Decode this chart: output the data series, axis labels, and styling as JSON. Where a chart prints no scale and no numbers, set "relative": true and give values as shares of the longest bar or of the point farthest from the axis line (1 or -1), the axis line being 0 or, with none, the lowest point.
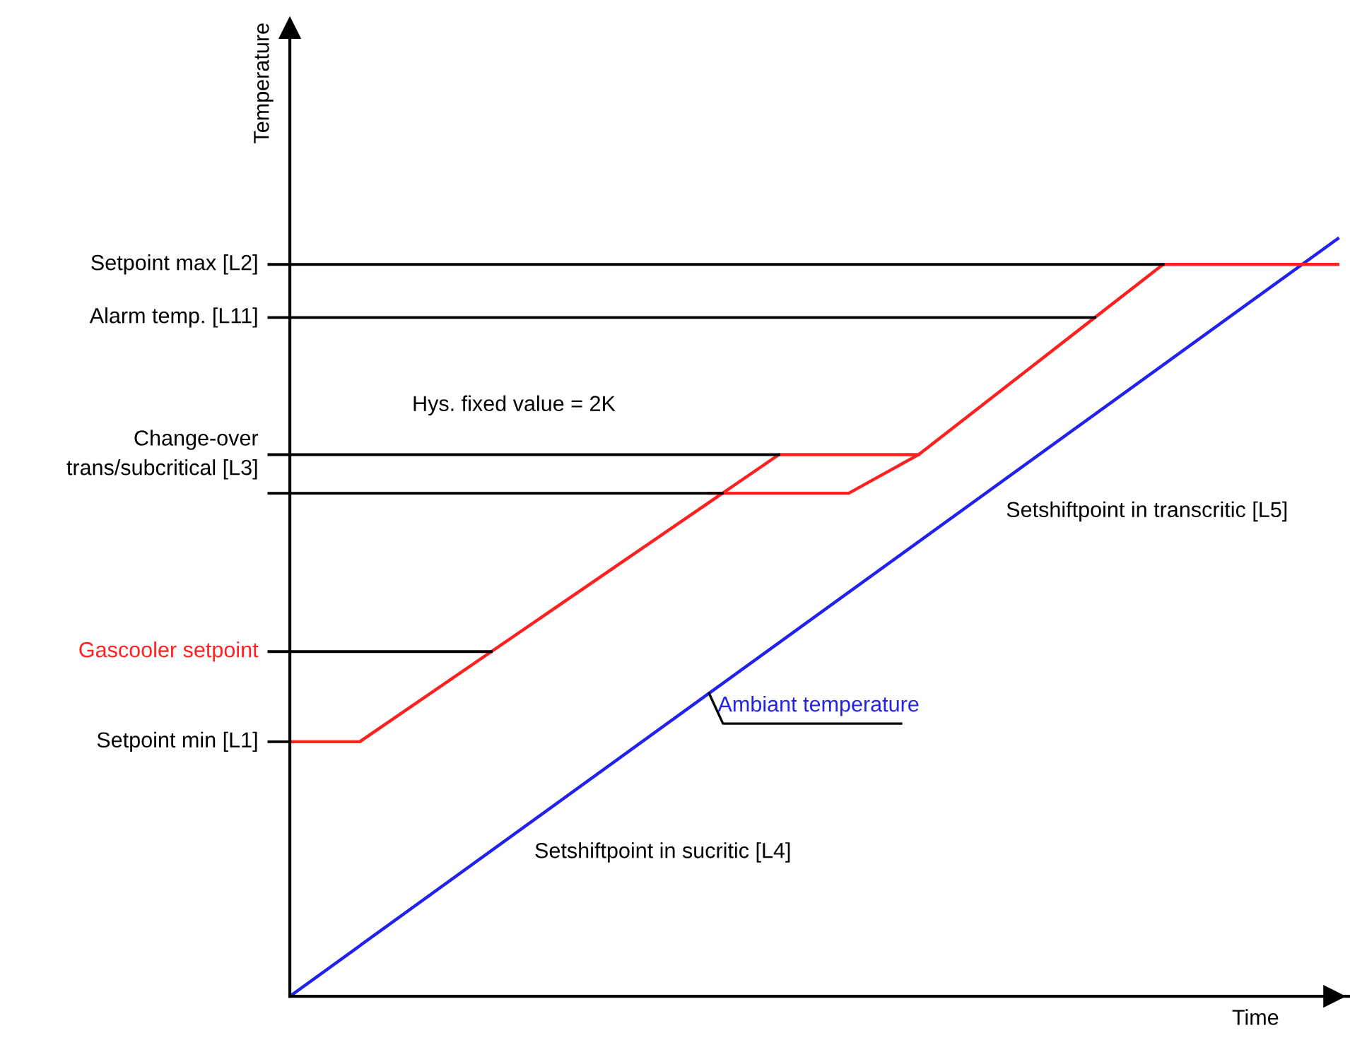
{
  "chart_data": {
    "type": "line",
    "relative": true,
    "ylabel": "Temperature",
    "xlabel": "Time",
    "legend": false,
    "marker": "none",
    "categories": [
      null,
      null,
      null,
      null,
      null,
      null,
      null,
      null,
      null,
      null,
      null,
      null,
      null,
      null,
      null,
      null,
      null,
      null,
      null,
      null,
      null,
      null,
      null,
      null,
      null,
      null,
      null,
      null,
      null,
      null,
      null
    ],
    "series": [
      {
        "name": "Ambiant temperature",
        "color": "#2222ee",
        "values": [
          0,
          null,
          null,
          null,
          null,
          null,
          null,
          null,
          null,
          null,
          null,
          null,
          null,
          null,
          null,
          null,
          null,
          null,
          null,
          null,
          null,
          null,
          null,
          null,
          null,
          null,
          null,
          null,
          null,
          null,
          1
        ]
      },
      {
        "name": "Gascooler setpoint",
        "color": "#ff2020",
        "values": [
          0.336,
          null,
          0.336,
          null,
          null,
          null,
          null,
          null,
          null,
          null,
          null,
          null,
          null,
          null,
          0.715,
          null,
          null,
          null,
          0.715,
          null,
          null,
          null,
          null,
          null,
          null,
          0.966,
          null,
          null,
          null,
          null,
          0.966
        ]
      },
      {
        "color": "#ff2020",
        "values": [
          null,
          null,
          null,
          null,
          null,
          null,
          null,
          null,
          null,
          null,
          null,
          null,
          0.664,
          null,
          null,
          null,
          0.664,
          null,
          0.715,
          null,
          null,
          null,
          null,
          null,
          null,
          null,
          null,
          null,
          null,
          null,
          null
        ]
      }
    ],
    "ref_lines": [
      {
        "axis": "y",
        "value": 0.966,
        "label": "Setpoint max [L2]",
        "color": "#000000"
      },
      {
        "axis": "y",
        "value": 0.896,
        "label": "Alarm temp. [L11]",
        "color": "#000000"
      },
      {
        "axis": "y",
        "value": 0.715,
        "label": "Change-over\ntrans/subcritical [L3]",
        "color": "#000000"
      },
      {
        "axis": "y",
        "value": 0.664,
        "label": null,
        "color": "#000000"
      },
      {
        "axis": "y",
        "value": 0.455,
        "label": null,
        "color": "#000000"
      },
      {
        "axis": "y",
        "value": 0.336,
        "label": "Setpoint min [L1]",
        "color": "#000000"
      }
    ],
    "annotations": [
      "Hys. fixed value = 2K",
      "Setshiftpoint in transcritic [L5]",
      "Setshiftpoint in sucritic [L4]"
    ]
  }
}
